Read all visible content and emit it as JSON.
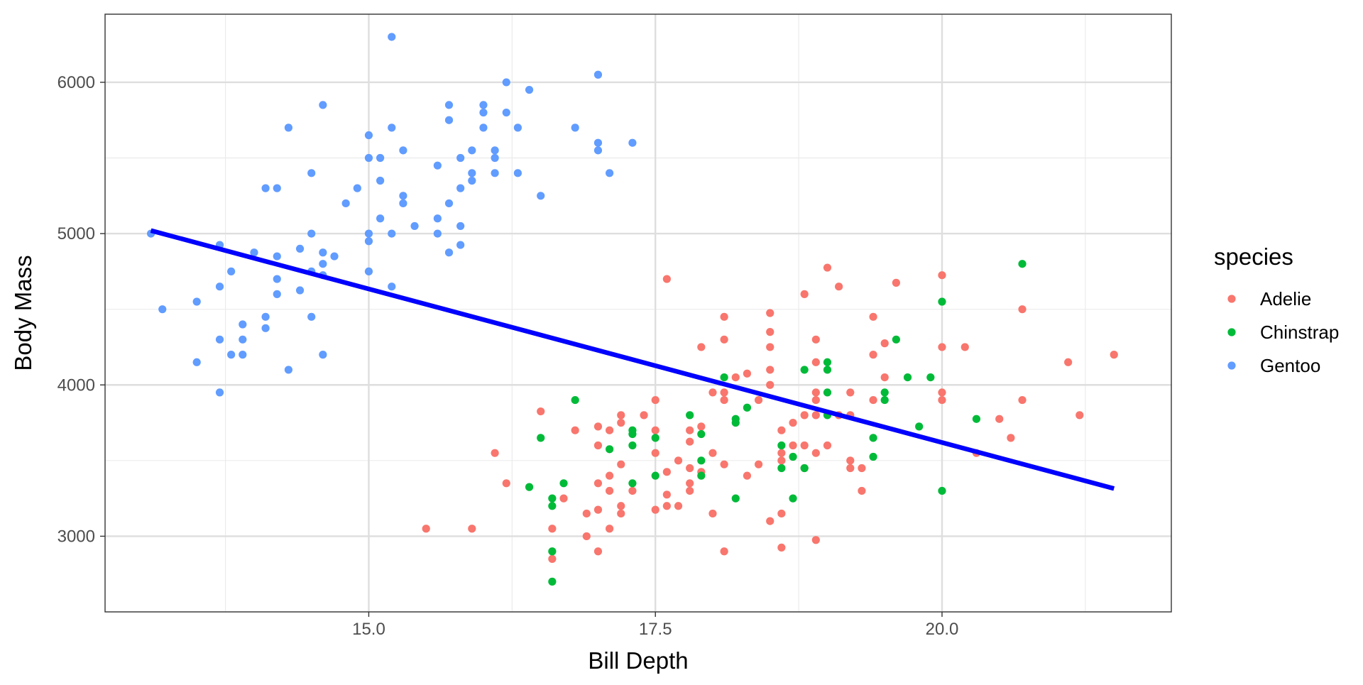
{
  "chart_data": {
    "type": "scatter",
    "title": "",
    "xlabel": "Bill Depth",
    "ylabel": "Body Mass",
    "xlim": [
      12.7,
      22.0
    ],
    "ylim": [
      2500,
      6450
    ],
    "x_ticks": [
      15.0,
      17.5,
      20.0
    ],
    "x_tick_labels": [
      "15.0",
      "17.5",
      "20.0"
    ],
    "y_ticks": [
      3000,
      4000,
      5000,
      6000
    ],
    "y_tick_labels": [
      "3000",
      "4000",
      "5000",
      "6000"
    ],
    "grid": true,
    "legend": {
      "title": "species",
      "placement": "right",
      "entries": [
        "Adelie",
        "Chinstrap",
        "Gentoo"
      ]
    },
    "colors": {
      "Adelie": "#F8766D",
      "Chinstrap": "#00BA38",
      "Gentoo": "#619CFF",
      "fit_line": "#0000FF"
    },
    "series": [
      {
        "name": "Adelie",
        "points": [
          [
            15.5,
            3050
          ],
          [
            15.9,
            3050
          ],
          [
            16.1,
            3550
          ],
          [
            16.2,
            3350
          ],
          [
            16.5,
            3825
          ],
          [
            16.6,
            2850
          ],
          [
            16.6,
            3050
          ],
          [
            16.7,
            3250
          ],
          [
            16.8,
            3700
          ],
          [
            16.9,
            3000
          ],
          [
            16.9,
            3150
          ],
          [
            17.0,
            2900
          ],
          [
            17.0,
            3175
          ],
          [
            17.0,
            3350
          ],
          [
            17.0,
            3600
          ],
          [
            17.0,
            3725
          ],
          [
            17.1,
            3050
          ],
          [
            17.1,
            3300
          ],
          [
            17.1,
            3400
          ],
          [
            17.1,
            3700
          ],
          [
            17.2,
            3150
          ],
          [
            17.2,
            3200
          ],
          [
            17.2,
            3475
          ],
          [
            17.2,
            3750
          ],
          [
            17.2,
            3800
          ],
          [
            17.3,
            3300
          ],
          [
            17.4,
            3800
          ],
          [
            17.5,
            3175
          ],
          [
            17.5,
            3550
          ],
          [
            17.5,
            3700
          ],
          [
            17.5,
            3900
          ],
          [
            17.6,
            3200
          ],
          [
            17.6,
            3275
          ],
          [
            17.6,
            3425
          ],
          [
            17.6,
            4700
          ],
          [
            17.7,
            3200
          ],
          [
            17.7,
            3500
          ],
          [
            17.8,
            3300
          ],
          [
            17.8,
            3350
          ],
          [
            17.8,
            3450
          ],
          [
            17.8,
            3625
          ],
          [
            17.8,
            3700
          ],
          [
            17.9,
            3425
          ],
          [
            17.9,
            3725
          ],
          [
            17.9,
            4250
          ],
          [
            18.0,
            3150
          ],
          [
            18.0,
            3550
          ],
          [
            18.0,
            3950
          ],
          [
            18.1,
            2900
          ],
          [
            18.1,
            3475
          ],
          [
            18.1,
            3900
          ],
          [
            18.1,
            3950
          ],
          [
            18.1,
            4300
          ],
          [
            18.1,
            4450
          ],
          [
            18.2,
            4050
          ],
          [
            18.3,
            3400
          ],
          [
            18.3,
            4075
          ],
          [
            18.4,
            3475
          ],
          [
            18.4,
            3900
          ],
          [
            18.5,
            3100
          ],
          [
            18.5,
            4000
          ],
          [
            18.5,
            4100
          ],
          [
            18.5,
            4250
          ],
          [
            18.5,
            4350
          ],
          [
            18.5,
            4475
          ],
          [
            18.6,
            2925
          ],
          [
            18.6,
            3150
          ],
          [
            18.6,
            3500
          ],
          [
            18.6,
            3550
          ],
          [
            18.6,
            3700
          ],
          [
            18.7,
            3600
          ],
          [
            18.7,
            3750
          ],
          [
            18.8,
            3450
          ],
          [
            18.8,
            3600
          ],
          [
            18.8,
            3800
          ],
          [
            18.8,
            4600
          ],
          [
            18.9,
            2975
          ],
          [
            18.9,
            3550
          ],
          [
            18.9,
            3800
          ],
          [
            18.9,
            3900
          ],
          [
            18.9,
            3950
          ],
          [
            18.9,
            4150
          ],
          [
            18.9,
            4300
          ],
          [
            19.0,
            3600
          ],
          [
            19.0,
            4775
          ],
          [
            19.1,
            3800
          ],
          [
            19.1,
            4650
          ],
          [
            19.2,
            3450
          ],
          [
            19.2,
            3500
          ],
          [
            19.2,
            3800
          ],
          [
            19.2,
            3950
          ],
          [
            19.3,
            3300
          ],
          [
            19.3,
            3450
          ],
          [
            19.4,
            3900
          ],
          [
            19.4,
            4200
          ],
          [
            19.4,
            4450
          ],
          [
            19.5,
            4050
          ],
          [
            19.5,
            4275
          ],
          [
            19.6,
            4675
          ],
          [
            20.0,
            3900
          ],
          [
            20.0,
            3950
          ],
          [
            20.0,
            4250
          ],
          [
            20.0,
            4725
          ],
          [
            20.2,
            4250
          ],
          [
            20.3,
            3550
          ],
          [
            20.5,
            3775
          ],
          [
            20.6,
            3650
          ],
          [
            20.7,
            3900
          ],
          [
            20.7,
            4500
          ],
          [
            21.1,
            4150
          ],
          [
            21.2,
            3800
          ],
          [
            21.5,
            4200
          ]
        ]
      },
      {
        "name": "Chinstrap",
        "points": [
          [
            16.4,
            3325
          ],
          [
            16.5,
            3650
          ],
          [
            16.6,
            2700
          ],
          [
            16.6,
            2900
          ],
          [
            16.6,
            3200
          ],
          [
            16.6,
            3250
          ],
          [
            16.7,
            3350
          ],
          [
            16.8,
            3900
          ],
          [
            17.1,
            3575
          ],
          [
            17.3,
            3350
          ],
          [
            17.3,
            3600
          ],
          [
            17.3,
            3675
          ],
          [
            17.3,
            3700
          ],
          [
            17.5,
            3400
          ],
          [
            17.5,
            3650
          ],
          [
            17.8,
            3800
          ],
          [
            17.9,
            3400
          ],
          [
            17.9,
            3500
          ],
          [
            17.9,
            3675
          ],
          [
            18.1,
            4050
          ],
          [
            18.2,
            3250
          ],
          [
            18.2,
            3750
          ],
          [
            18.2,
            3775
          ],
          [
            18.3,
            3850
          ],
          [
            18.6,
            3450
          ],
          [
            18.6,
            3600
          ],
          [
            18.7,
            3250
          ],
          [
            18.7,
            3525
          ],
          [
            18.8,
            3450
          ],
          [
            18.8,
            4100
          ],
          [
            19.0,
            3800
          ],
          [
            19.0,
            3950
          ],
          [
            19.0,
            4100
          ],
          [
            19.0,
            4150
          ],
          [
            19.4,
            3525
          ],
          [
            19.4,
            3650
          ],
          [
            19.5,
            3900
          ],
          [
            19.5,
            3950
          ],
          [
            19.6,
            4300
          ],
          [
            19.7,
            4050
          ],
          [
            19.8,
            3725
          ],
          [
            19.9,
            4050
          ],
          [
            20.0,
            3300
          ],
          [
            20.0,
            4550
          ],
          [
            20.3,
            3775
          ],
          [
            20.7,
            4800
          ]
        ]
      },
      {
        "name": "Gentoo",
        "points": [
          [
            13.1,
            5000
          ],
          [
            13.2,
            4500
          ],
          [
            13.5,
            4150
          ],
          [
            13.5,
            4550
          ],
          [
            13.7,
            3950
          ],
          [
            13.7,
            4300
          ],
          [
            13.7,
            4650
          ],
          [
            13.7,
            4925
          ],
          [
            13.8,
            4200
          ],
          [
            13.8,
            4750
          ],
          [
            13.9,
            4200
          ],
          [
            13.9,
            4300
          ],
          [
            13.9,
            4400
          ],
          [
            14.0,
            4875
          ],
          [
            14.1,
            4375
          ],
          [
            14.1,
            4450
          ],
          [
            14.1,
            5300
          ],
          [
            14.2,
            4600
          ],
          [
            14.2,
            4700
          ],
          [
            14.2,
            4850
          ],
          [
            14.2,
            5300
          ],
          [
            14.3,
            4100
          ],
          [
            14.3,
            5700
          ],
          [
            14.4,
            4625
          ],
          [
            14.4,
            4900
          ],
          [
            14.5,
            4450
          ],
          [
            14.5,
            4750
          ],
          [
            14.5,
            5000
          ],
          [
            14.5,
            5400
          ],
          [
            14.6,
            4200
          ],
          [
            14.6,
            4725
          ],
          [
            14.6,
            4800
          ],
          [
            14.6,
            4875
          ],
          [
            14.6,
            5850
          ],
          [
            14.7,
            4850
          ],
          [
            14.8,
            5200
          ],
          [
            14.9,
            5300
          ],
          [
            15.0,
            4750
          ],
          [
            15.0,
            4950
          ],
          [
            15.0,
            5000
          ],
          [
            15.0,
            5500
          ],
          [
            15.0,
            5650
          ],
          [
            15.1,
            5100
          ],
          [
            15.1,
            5350
          ],
          [
            15.1,
            5500
          ],
          [
            15.2,
            4650
          ],
          [
            15.2,
            5000
          ],
          [
            15.2,
            5700
          ],
          [
            15.2,
            6300
          ],
          [
            15.3,
            5200
          ],
          [
            15.3,
            5250
          ],
          [
            15.3,
            5550
          ],
          [
            15.4,
            5050
          ],
          [
            15.6,
            5000
          ],
          [
            15.6,
            5100
          ],
          [
            15.6,
            5450
          ],
          [
            15.7,
            4875
          ],
          [
            15.7,
            5200
          ],
          [
            15.7,
            5750
          ],
          [
            15.7,
            5850
          ],
          [
            15.8,
            4925
          ],
          [
            15.8,
            5050
          ],
          [
            15.8,
            5300
          ],
          [
            15.8,
            5500
          ],
          [
            15.9,
            5350
          ],
          [
            15.9,
            5400
          ],
          [
            15.9,
            5550
          ],
          [
            16.0,
            5700
          ],
          [
            16.0,
            5800
          ],
          [
            16.0,
            5850
          ],
          [
            16.1,
            5400
          ],
          [
            16.1,
            5500
          ],
          [
            16.1,
            5550
          ],
          [
            16.2,
            5800
          ],
          [
            16.2,
            6000
          ],
          [
            16.3,
            5400
          ],
          [
            16.3,
            5700
          ],
          [
            16.4,
            5950
          ],
          [
            16.5,
            5250
          ],
          [
            16.8,
            5700
          ],
          [
            17.0,
            5550
          ],
          [
            17.0,
            5600
          ],
          [
            17.0,
            6050
          ],
          [
            17.1,
            5400
          ],
          [
            17.3,
            5600
          ]
        ]
      }
    ],
    "fit_line": {
      "x": [
        13.1,
        21.5
      ],
      "y": [
        5020,
        3315
      ]
    }
  }
}
